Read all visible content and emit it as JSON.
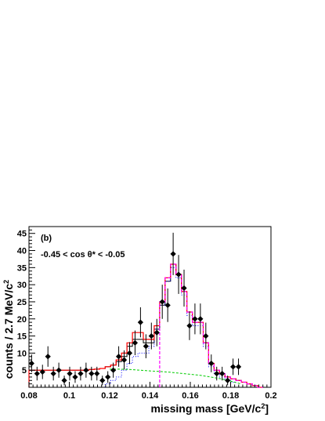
{
  "chart_data": {
    "type": "histogram",
    "xlabel": "missing mass [GeV/c",
    "xlabel_sup": "2",
    "xlabel_end": "]",
    "ylabel": "counts / 2.7 MeV/c",
    "ylabel_sup": "2",
    "panel_label": "(b)",
    "annotation": "-0.45 < cos  θ* < -0.05",
    "xlim": [
      0.08,
      0.2
    ],
    "ylim": [
      0,
      47
    ],
    "x_ticks": [
      0.08,
      0.1,
      0.12,
      0.14,
      0.16,
      0.18,
      0.2
    ],
    "x_tick_labels": [
      "0.08",
      "0.1",
      "0.12",
      "0.14",
      "0.16",
      "0.18",
      "0.2"
    ],
    "y_ticks": [
      5,
      10,
      15,
      20,
      25,
      30,
      35,
      40,
      45
    ],
    "y_tick_labels": [
      "5",
      "10",
      "15",
      "20",
      "25",
      "30",
      "35",
      "40",
      "45"
    ],
    "grid": false,
    "data_points": [
      {
        "x": 0.0813,
        "y": 7,
        "err": 2.6
      },
      {
        "x": 0.084,
        "y": 4,
        "err": 2.0
      },
      {
        "x": 0.0867,
        "y": 4.5,
        "err": 2.1
      },
      {
        "x": 0.0894,
        "y": 9,
        "err": 3.0
      },
      {
        "x": 0.0921,
        "y": 4,
        "err": 2.0
      },
      {
        "x": 0.0948,
        "y": 5,
        "err": 2.2
      },
      {
        "x": 0.0975,
        "y": 2,
        "err": 1.4
      },
      {
        "x": 0.1002,
        "y": 4,
        "err": 2.0
      },
      {
        "x": 0.1029,
        "y": 3,
        "err": 1.7
      },
      {
        "x": 0.1056,
        "y": 4,
        "err": 2.0
      },
      {
        "x": 0.1083,
        "y": 5,
        "err": 2.2
      },
      {
        "x": 0.111,
        "y": 4,
        "err": 2.0
      },
      {
        "x": 0.1137,
        "y": 4,
        "err": 2.0
      },
      {
        "x": 0.1164,
        "y": 2,
        "err": 1.4
      },
      {
        "x": 0.1191,
        "y": 3,
        "err": 1.7
      },
      {
        "x": 0.1218,
        "y": 5,
        "err": 2.2
      },
      {
        "x": 0.1245,
        "y": 9,
        "err": 3.0
      },
      {
        "x": 0.1272,
        "y": 8,
        "err": 2.8
      },
      {
        "x": 0.1299,
        "y": 10,
        "err": 3.2
      },
      {
        "x": 0.1326,
        "y": 13,
        "err": 3.6
      },
      {
        "x": 0.1353,
        "y": 19,
        "err": 4.4
      },
      {
        "x": 0.138,
        "y": 12,
        "err": 3.5
      },
      {
        "x": 0.1407,
        "y": 15,
        "err": 3.9
      },
      {
        "x": 0.1434,
        "y": 16,
        "err": 4.0
      },
      {
        "x": 0.1461,
        "y": 25,
        "err": 5.0
      },
      {
        "x": 0.1488,
        "y": 24,
        "err": 4.9
      },
      {
        "x": 0.1515,
        "y": 39,
        "err": 6.2
      },
      {
        "x": 0.1542,
        "y": 33,
        "err": 5.7
      },
      {
        "x": 0.1569,
        "y": 29,
        "err": 5.4
      },
      {
        "x": 0.1596,
        "y": 18,
        "err": 4.2
      },
      {
        "x": 0.1623,
        "y": 20,
        "err": 4.5
      },
      {
        "x": 0.165,
        "y": 20,
        "err": 4.5
      },
      {
        "x": 0.1677,
        "y": 15,
        "err": 3.9
      },
      {
        "x": 0.1704,
        "y": 7,
        "err": 2.6
      },
      {
        "x": 0.1731,
        "y": 4,
        "err": 2.0
      },
      {
        "x": 0.1758,
        "y": 4,
        "err": 2.0
      },
      {
        "x": 0.1785,
        "y": 2,
        "err": 1.4
      },
      {
        "x": 0.1812,
        "y": 6,
        "err": 2.4
      },
      {
        "x": 0.1839,
        "y": 6,
        "err": 2.4
      }
    ],
    "fit_total": {
      "color": "#ff0000",
      "edges": [
        0.08,
        0.0827,
        0.0854,
        0.0881,
        0.0908,
        0.0935,
        0.0962,
        0.0989,
        0.1016,
        0.1043,
        0.107,
        0.1097,
        0.1124,
        0.1151,
        0.1178,
        0.1205,
        0.1232,
        0.1259,
        0.1286,
        0.1313,
        0.134,
        0.1367,
        0.1394,
        0.1421,
        0.1448,
        0.1475,
        0.1502,
        0.1529,
        0.1556,
        0.1583,
        0.161,
        0.1637,
        0.1664,
        0.1691,
        0.1718,
        0.1745,
        0.1772,
        0.1799,
        0.1826,
        0.1853,
        0.188,
        0.1907,
        0.1934,
        0.1961
      ],
      "values": [
        5,
        5,
        5,
        5,
        5,
        5,
        5,
        5,
        5,
        5,
        5,
        5.2,
        5.3,
        5.5,
        6,
        6.5,
        8,
        10,
        13,
        16,
        16,
        14,
        14,
        18,
        25,
        32,
        36,
        33,
        28,
        22,
        19,
        19,
        13,
        7,
        5,
        4,
        3,
        2.5,
        2,
        1.5,
        1,
        0.5,
        0
      ]
    },
    "fit_signal": {
      "color": "#0000ff",
      "edges": [
        0.1178,
        0.1205,
        0.1232,
        0.1259,
        0.1286,
        0.1313,
        0.134,
        0.1367,
        0.1394,
        0.1421,
        0.1448,
        0.1475,
        0.1502,
        0.1529,
        0.1556,
        0.1583,
        0.161,
        0.1637,
        0.1664,
        0.1691,
        0.1718,
        0.1745,
        0.1772,
        0.1799,
        0.1826
      ],
      "values": [
        1,
        2,
        3,
        5,
        7,
        9,
        10,
        10,
        12,
        17,
        24,
        31,
        35,
        32,
        27,
        21,
        18,
        18,
        12,
        6,
        4,
        3,
        2,
        1.5
      ]
    },
    "fit_model": {
      "color": "#ff00ff",
      "edges": [
        0.1448,
        0.1475,
        0.1502,
        0.1529,
        0.1556,
        0.1583,
        0.161,
        0.1637,
        0.1664,
        0.1691,
        0.1718,
        0.1745,
        0.1772,
        0.1799,
        0.1826,
        0.1853,
        0.188,
        0.1907,
        0.1934,
        0.1961
      ],
      "values": [
        25,
        32,
        36,
        33,
        28,
        22,
        19,
        19,
        13,
        7,
        5,
        4,
        3,
        2.5,
        2,
        1.5,
        1,
        0.5,
        0
      ]
    },
    "background": {
      "color": "#00cc00",
      "x": [
        0.12,
        0.125,
        0.13,
        0.135,
        0.14,
        0.145,
        0.15,
        0.155,
        0.16,
        0.165,
        0.17,
        0.175,
        0.18,
        0.185
      ],
      "y": [
        5.3,
        5.3,
        5.2,
        5.0,
        4.8,
        4.6,
        4.4,
        4.1,
        3.8,
        3.5,
        3.0,
        2.5,
        1.8,
        1.0
      ]
    },
    "mc_histogram": {
      "color": "#000000",
      "edges": [
        0.08,
        0.0827,
        0.0854,
        0.0881,
        0.0908,
        0.0935,
        0.0962,
        0.0989,
        0.1016,
        0.1043,
        0.107,
        0.1097,
        0.1124,
        0.1151,
        0.1178,
        0.1205,
        0.1232,
        0.1259,
        0.1286,
        0.1313,
        0.134,
        0.1367,
        0.1394,
        0.1421,
        0.1448,
        0.1475,
        0.1502,
        0.1529,
        0.1556,
        0.1583,
        0.161,
        0.1637,
        0.1664,
        0.1691,
        0.1718,
        0.1745,
        0.1772,
        0.1799,
        0.1826,
        0.1853,
        0.188,
        0.1907,
        0.1934,
        0.1961
      ],
      "values": [
        5,
        5,
        5,
        5,
        5,
        5,
        5,
        5,
        5,
        5,
        5,
        5.2,
        5.3,
        5.5,
        6,
        6.5,
        7.5,
        9,
        12,
        14,
        14,
        13,
        13,
        17,
        24,
        31,
        36,
        33,
        28,
        22,
        19,
        19,
        13,
        7,
        5,
        4,
        3,
        2.5,
        2,
        1.5,
        1,
        0.5,
        0
      ]
    }
  }
}
